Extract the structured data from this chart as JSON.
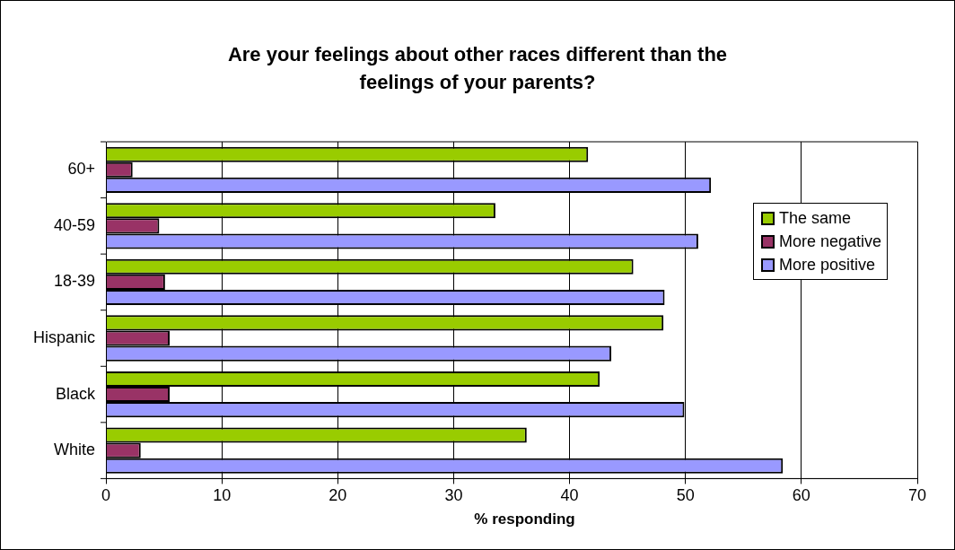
{
  "chart_data": {
    "type": "bar",
    "orientation": "horizontal",
    "title": "Are your feelings about other races different than the feelings of your parents?",
    "xlabel": "% responding",
    "categories": [
      "60+",
      "40-59",
      "18-39",
      "Hispanic",
      "Black",
      "White"
    ],
    "series": [
      {
        "name": "The same",
        "color": "#99cc00",
        "values": [
          41.6,
          33.6,
          45.5,
          48.1,
          42.6,
          36.3
        ]
      },
      {
        "name": "More negative",
        "color": "#993366",
        "values": [
          2.3,
          4.6,
          5.1,
          5.5,
          5.5,
          3.0
        ]
      },
      {
        "name": "More positive",
        "color": "#9999ff",
        "values": [
          52.2,
          51.1,
          48.2,
          43.6,
          49.9,
          58.4
        ]
      }
    ],
    "xlim": [
      0,
      70
    ],
    "xticks": [
      0,
      10,
      20,
      30,
      40,
      50,
      60,
      70
    ],
    "grid": "x",
    "legend": "right"
  }
}
